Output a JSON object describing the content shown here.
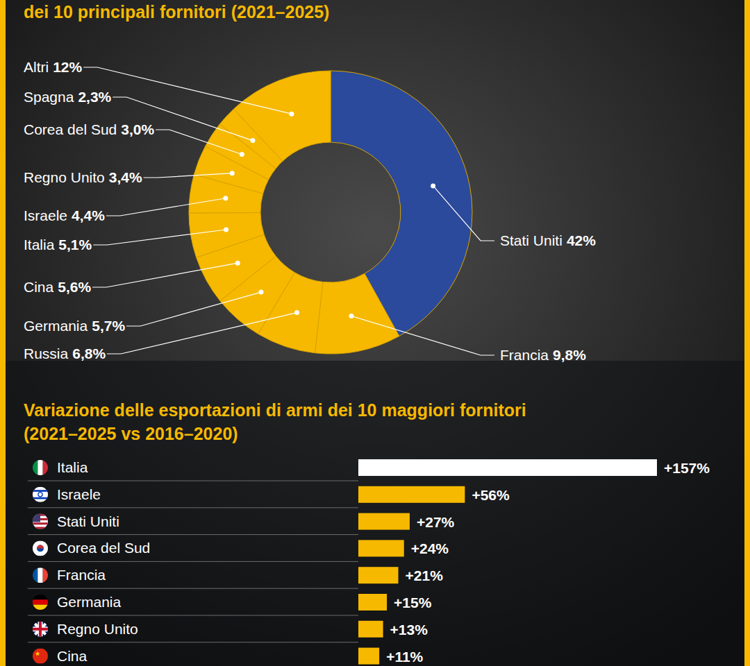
{
  "chart_data": [
    {
      "type": "pie",
      "title": "dei 10 principali fornitori (2021–2025)",
      "categories": [
        "Stati Uniti",
        "Francia",
        "Russia",
        "Germania",
        "Cina",
        "Italia",
        "Israele",
        "Regno Unito",
        "Corea del Sud",
        "Spagna",
        "Altri"
      ],
      "values": [
        42,
        9.8,
        6.8,
        5.7,
        5.6,
        5.1,
        4.4,
        3.4,
        3.0,
        2.3,
        12
      ],
      "value_labels": [
        "42%",
        "9,8%",
        "6,8%",
        "5,7%",
        "5,6%",
        "5,1%",
        "4,4%",
        "3,4%",
        "3,0%",
        "2,3%",
        "12%"
      ],
      "colors": [
        "#2b4a9b",
        "#f6b900",
        "#f6b900",
        "#f6b900",
        "#f6b900",
        "#f6b900",
        "#f6b900",
        "#f6b900",
        "#f6b900",
        "#f6b900",
        "#f6b900"
      ],
      "data_labels": true
    },
    {
      "type": "bar",
      "title": "Variazione delle esportazioni di armi dei 10 maggiori fornitori",
      "subtitle": "(2021–2025 vs 2016–2020)",
      "orientation": "horizontal",
      "categories": [
        "Italia",
        "Israele",
        "Stati Uniti",
        "Corea del Sud",
        "Francia",
        "Germania",
        "Regno Unito",
        "Cina"
      ],
      "values": [
        157,
        56,
        27,
        24,
        21,
        15,
        13,
        11
      ],
      "value_labels": [
        "+157%",
        "+56%",
        "+27%",
        "+24%",
        "+21%",
        "+15%",
        "+13%",
        "+11%"
      ],
      "colors": [
        "#ffffff",
        "#f6b900",
        "#f6b900",
        "#f6b900",
        "#f6b900",
        "#f6b900",
        "#f6b900",
        "#f6b900"
      ],
      "xlim": [
        0,
        157
      ],
      "data_labels": true,
      "tick_labels": "y"
    }
  ]
}
